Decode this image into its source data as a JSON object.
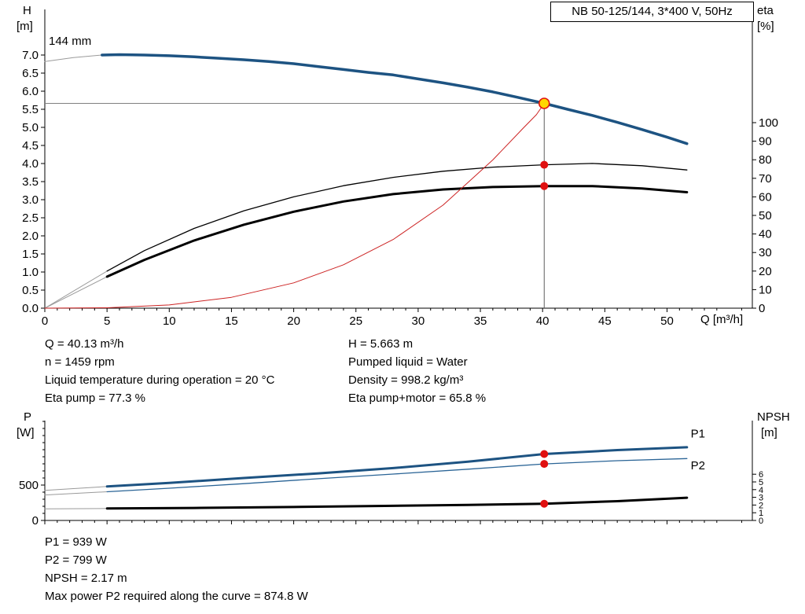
{
  "chart_data": [
    {
      "id": "qh",
      "type": "line",
      "title": "NB 50-125/144, 3*400 V, 50Hz",
      "impeller_label": "144 mm",
      "duty": {
        "q": 40.13,
        "h": 5.663
      },
      "axes": {
        "left": {
          "name": "H",
          "unit": "[m]",
          "min": 0,
          "max": 7,
          "ticks": [
            [
              0,
              "0.0"
            ],
            [
              0.5,
              "0.5"
            ],
            [
              1,
              "1.0"
            ],
            [
              1.5,
              "1.5"
            ],
            [
              2,
              "2.0"
            ],
            [
              2.5,
              "2.5"
            ],
            [
              3,
              "3.0"
            ],
            [
              3.5,
              "3.5"
            ],
            [
              4,
              "4.0"
            ],
            [
              4.5,
              "4.5"
            ],
            [
              5,
              "5.0"
            ],
            [
              5.5,
              "5.5"
            ],
            [
              6,
              "6.0"
            ],
            [
              6.5,
              "6.5"
            ],
            [
              7,
              "7.0"
            ]
          ]
        },
        "right": {
          "name": "eta",
          "unit": "[%]",
          "min": 0,
          "max": 100,
          "ticks": [
            [
              0,
              "0"
            ],
            [
              10,
              "10"
            ],
            [
              20,
              "20"
            ],
            [
              30,
              "30"
            ],
            [
              40,
              "40"
            ],
            [
              50,
              "50"
            ],
            [
              60,
              "60"
            ],
            [
              70,
              "70"
            ],
            [
              80,
              "80"
            ],
            [
              90,
              "90"
            ],
            [
              100,
              "100"
            ]
          ]
        },
        "x": {
          "name": "Q [m³/h]",
          "min": 0,
          "max": 56.8,
          "ticks": [
            [
              0,
              "0"
            ],
            [
              5,
              "5"
            ],
            [
              10,
              "10"
            ],
            [
              15,
              "15"
            ],
            [
              20,
              "20"
            ],
            [
              25,
              "25"
            ],
            [
              30,
              "30"
            ],
            [
              35,
              "35"
            ],
            [
              40,
              "40"
            ],
            [
              45,
              "45"
            ],
            [
              50,
              "50"
            ]
          ]
        }
      },
      "series": [
        {
          "name": "h-curve-extension",
          "axis": "left",
          "color": "#9a9a9a",
          "width": 1,
          "points": [
            [
              0,
              6.82
            ],
            [
              2.3,
              6.93
            ],
            [
              4.6,
              7.0
            ]
          ]
        },
        {
          "name": "h-curve",
          "axis": "left",
          "color": "#1d5382",
          "width": 3.5,
          "points": [
            [
              4.6,
              7.0
            ],
            [
              6,
              7.01
            ],
            [
              8,
              7.0
            ],
            [
              10,
              6.98
            ],
            [
              12,
              6.95
            ],
            [
              14,
              6.91
            ],
            [
              16,
              6.87
            ],
            [
              18,
              6.82
            ],
            [
              20,
              6.76
            ],
            [
              22,
              6.68
            ],
            [
              24,
              6.6
            ],
            [
              26,
              6.52
            ],
            [
              28,
              6.45
            ],
            [
              30,
              6.34
            ],
            [
              32,
              6.23
            ],
            [
              34,
              6.11
            ],
            [
              36,
              5.98
            ],
            [
              38,
              5.83
            ],
            [
              40.13,
              5.663
            ],
            [
              42,
              5.5
            ],
            [
              44,
              5.33
            ],
            [
              46,
              5.14
            ],
            [
              48,
              4.94
            ],
            [
              50,
              4.73
            ],
            [
              51.6,
              4.55
            ]
          ]
        },
        {
          "name": "eta-pump-extension",
          "axis": "right",
          "color": "#9a9a9a",
          "width": 1,
          "points": [
            [
              0,
              0
            ],
            [
              5,
              20
            ]
          ]
        },
        {
          "name": "eta-pump-curve",
          "axis": "right",
          "color": "#000000",
          "width": 1.3,
          "points": [
            [
              5,
              20
            ],
            [
              8,
              31
            ],
            [
              12,
              43
            ],
            [
              16,
              52.5
            ],
            [
              20,
              60
            ],
            [
              24,
              66
            ],
            [
              28,
              70.5
            ],
            [
              32,
              73.8
            ],
            [
              36,
              76
            ],
            [
              40.13,
              77.3
            ],
            [
              44,
              78
            ],
            [
              48,
              76.8
            ],
            [
              51.6,
              74.5
            ]
          ]
        },
        {
          "name": "eta-pump-motor-extension",
          "axis": "right",
          "color": "#9a9a9a",
          "width": 1,
          "points": [
            [
              0,
              0
            ],
            [
              5,
              17
            ]
          ]
        },
        {
          "name": "eta-pump-motor-curve",
          "axis": "right",
          "color": "#000000",
          "width": 3,
          "points": [
            [
              5,
              17
            ],
            [
              8,
              26
            ],
            [
              12,
              36.5
            ],
            [
              16,
              45
            ],
            [
              20,
              52
            ],
            [
              24,
              57.5
            ],
            [
              28,
              61.5
            ],
            [
              32,
              64
            ],
            [
              36,
              65.3
            ],
            [
              40.13,
              65.8
            ],
            [
              44,
              65.8
            ],
            [
              48,
              64.5
            ],
            [
              51.6,
              62.5
            ]
          ]
        },
        {
          "name": "system-curve",
          "axis": "left",
          "color": "#cc2222",
          "width": 1,
          "points": [
            [
              0,
              0
            ],
            [
              5,
              0.01
            ],
            [
              10,
              0.09
            ],
            [
              15,
              0.3
            ],
            [
              20,
              0.7
            ],
            [
              24,
              1.2
            ],
            [
              28,
              1.9
            ],
            [
              32,
              2.85
            ],
            [
              36,
              4.1
            ],
            [
              38.5,
              5.0
            ],
            [
              39.5,
              5.35
            ],
            [
              40.13,
              5.663
            ]
          ]
        }
      ],
      "markers": [
        {
          "type": "duty",
          "axis": "left",
          "x": 40.13,
          "y": 5.663
        },
        {
          "type": "dot",
          "axis": "right",
          "x": 40.13,
          "y": 77.3
        },
        {
          "type": "dot",
          "axis": "right",
          "x": 40.13,
          "y": 65.8
        }
      ]
    },
    {
      "id": "power",
      "type": "line",
      "axes": {
        "left": {
          "name": "P",
          "unit": "[W]",
          "min": 0,
          "max": 1411,
          "ticks": [
            [
              0,
              "0"
            ],
            [
              500,
              "500"
            ]
          ],
          "minor": [
            100,
            200,
            300,
            400,
            600,
            700,
            800,
            900,
            1000,
            1100,
            1200,
            1300,
            1400
          ]
        },
        "right": {
          "name": "NPSH",
          "unit": "[m]",
          "min": 0,
          "max": 6,
          "small": true,
          "ticks": [
            [
              0,
              "0"
            ],
            [
              1,
              "1"
            ],
            [
              2,
              "2"
            ],
            [
              3,
              "3"
            ],
            [
              4,
              "4"
            ],
            [
              5,
              "5"
            ],
            [
              6,
              "6"
            ]
          ]
        },
        "x": {
          "name": "",
          "min": 0,
          "max": 56.8,
          "ticks": [
            [
              0,
              ""
            ],
            [
              5,
              ""
            ],
            [
              10,
              ""
            ],
            [
              15,
              ""
            ],
            [
              20,
              ""
            ],
            [
              25,
              ""
            ],
            [
              30,
              ""
            ],
            [
              35,
              ""
            ],
            [
              40,
              ""
            ],
            [
              45,
              ""
            ],
            [
              50,
              ""
            ]
          ]
        }
      },
      "series": [
        {
          "name": "p1-extension",
          "axis": "left",
          "color": "#9a9a9a",
          "width": 1,
          "points": [
            [
              0,
              425
            ],
            [
              5,
              480
            ]
          ]
        },
        {
          "name": "p1-curve",
          "axis": "left",
          "color": "#1d5382",
          "width": 3,
          "points": [
            [
              5,
              480
            ],
            [
              10,
              530
            ],
            [
              16,
              600
            ],
            [
              22,
              665
            ],
            [
              28,
              740
            ],
            [
              34,
              830
            ],
            [
              40.13,
              939
            ],
            [
              46,
              995
            ],
            [
              51.6,
              1035
            ]
          ]
        },
        {
          "name": "p2-extension",
          "axis": "left",
          "color": "#9a9a9a",
          "width": 1,
          "points": [
            [
              0,
              360
            ],
            [
              5,
              405
            ]
          ]
        },
        {
          "name": "p2-curve",
          "axis": "left",
          "color": "#2a6496",
          "width": 1.3,
          "points": [
            [
              5,
              405
            ],
            [
              10,
              455
            ],
            [
              16,
              520
            ],
            [
              22,
              590
            ],
            [
              28,
              655
            ],
            [
              34,
              725
            ],
            [
              40.13,
              799
            ],
            [
              46,
              845
            ],
            [
              51.6,
              874
            ]
          ]
        },
        {
          "name": "npsh-extension",
          "axis": "right",
          "color": "#9a9a9a",
          "width": 1,
          "points": [
            [
              0,
              1.5
            ],
            [
              5,
              1.55
            ]
          ]
        },
        {
          "name": "npsh-curve",
          "axis": "right",
          "color": "#000000",
          "width": 3,
          "points": [
            [
              5,
              1.55
            ],
            [
              12,
              1.62
            ],
            [
              20,
              1.75
            ],
            [
              28,
              1.9
            ],
            [
              34,
              2.02
            ],
            [
              40.13,
              2.17
            ],
            [
              46,
              2.5
            ],
            [
              51.6,
              2.95
            ]
          ]
        }
      ],
      "markers": [
        {
          "type": "dot",
          "axis": "left",
          "x": 40.13,
          "y": 939
        },
        {
          "type": "dot",
          "axis": "left",
          "x": 40.13,
          "y": 799
        },
        {
          "type": "dot",
          "axis": "right",
          "x": 40.13,
          "y": 2.17
        }
      ],
      "annotations": [
        {
          "text": "P1",
          "q": 51.9,
          "v": 1230,
          "axis": "left",
          "color": "#1d5382"
        },
        {
          "text": "P2",
          "q": 51.9,
          "v": 780,
          "axis": "left",
          "color": "#2a6496"
        }
      ]
    }
  ],
  "info_top": {
    "col1": [
      "Q = 40.13 m³/h",
      "n = 1459 rpm",
      "Liquid temperature during operation = 20 °C",
      "Eta pump = 77.3 %"
    ],
    "col2": [
      "H = 5.663 m",
      "Pumped liquid = Water",
      "Density = 998.2 kg/m³",
      "Eta pump+motor = 65.8 %"
    ]
  },
  "info_bottom": {
    "lines": [
      "P1 = 939 W",
      "P2 = 799 W",
      "NPSH = 2.17 m",
      "Max power P2 required along the curve = 874.8 W"
    ]
  },
  "colors": {
    "curve_blue": "#1d5382",
    "curve_black": "#000000",
    "system_red": "#cc2222",
    "marker_red": "#e01010",
    "duty_yellow": "#ffd700",
    "guide_grey": "#808080"
  }
}
